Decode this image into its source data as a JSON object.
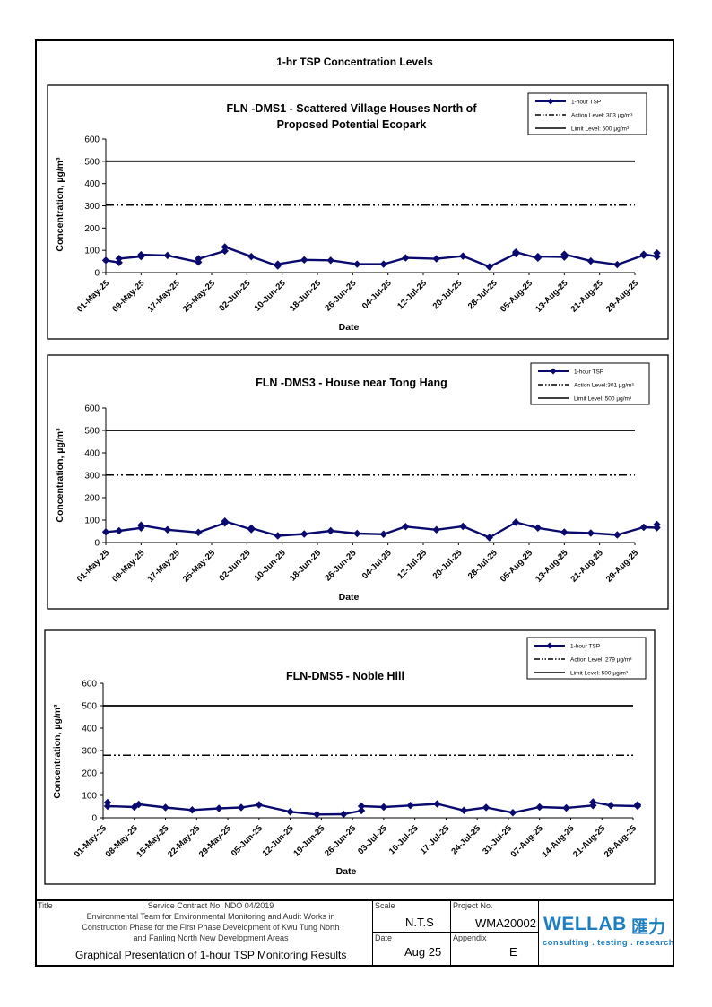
{
  "page": {
    "title": "1-hr TSP Concentration Levels"
  },
  "legend": {
    "tsp": "1-hour TSP"
  },
  "chart_data": [
    {
      "type": "line",
      "title_line1": "FLN -DMS1 - Scattered Village Houses North of",
      "title_line2": "Proposed Potential Ecopark",
      "xlabel": "Date",
      "ylabel": "Concentration, µg/m³",
      "ylim": [
        0,
        600
      ],
      "yticks": [
        "0",
        "100",
        "200",
        "300",
        "400",
        "500",
        "600"
      ],
      "x_range": [
        "2025-05-01",
        "2025-08-29"
      ],
      "x_ticks": [
        "01-May-25",
        "09-May-25",
        "17-May-25",
        "25-May-25",
        "02-Jun-25",
        "10-Jun-25",
        "18-Jun-25",
        "26-Jun-25",
        "04-Jul-25",
        "12-Jul-25",
        "20-Jul-25",
        "28-Jul-25",
        "05-Aug-25",
        "13-Aug-25",
        "21-Aug-25",
        "29-Aug-25"
      ],
      "legend_action": "Action Level: 303 µg/m³",
      "legend_limit": "Limit Level: 500 µg/m³",
      "action_level": 303,
      "limit_level": 500,
      "series": [
        {
          "name": "1-hour TSP",
          "points": [
            [
              "2025-05-01",
              55
            ],
            [
              "2025-05-04",
              45
            ],
            [
              "2025-05-04",
              63
            ],
            [
              "2025-05-09",
              72
            ],
            [
              "2025-05-09",
              80
            ],
            [
              "2025-05-15",
              77
            ],
            [
              "2025-05-22",
              47
            ],
            [
              "2025-05-22",
              62
            ],
            [
              "2025-05-28",
              97
            ],
            [
              "2025-05-28",
              115
            ],
            [
              "2025-06-03",
              72
            ],
            [
              "2025-06-09",
              30
            ],
            [
              "2025-06-09",
              38
            ],
            [
              "2025-06-15",
              57
            ],
            [
              "2025-06-21",
              55
            ],
            [
              "2025-06-27",
              38
            ],
            [
              "2025-07-03",
              38
            ],
            [
              "2025-07-08",
              66
            ],
            [
              "2025-07-15",
              62
            ],
            [
              "2025-07-21",
              74
            ],
            [
              "2025-07-27",
              26
            ],
            [
              "2025-08-02",
              85
            ],
            [
              "2025-08-02",
              92
            ],
            [
              "2025-08-07",
              65
            ],
            [
              "2025-08-07",
              72
            ],
            [
              "2025-08-13",
              70
            ],
            [
              "2025-08-13",
              82
            ],
            [
              "2025-08-19",
              52
            ],
            [
              "2025-08-25",
              36
            ],
            [
              "2025-08-31",
              78
            ],
            [
              "2025-08-31",
              82
            ],
            [
              "2025-09-03",
              72
            ],
            [
              "2025-09-03",
              88
            ]
          ]
        }
      ]
    },
    {
      "type": "line",
      "title_line1": "FLN -DMS3 - House near Tong Hang",
      "title_line2": "",
      "xlabel": "Date",
      "ylabel": "Concentration, µg/m³",
      "ylim": [
        0,
        600
      ],
      "yticks": [
        "0",
        "100",
        "200",
        "300",
        "400",
        "500",
        "600"
      ],
      "x_range": [
        "2025-05-01",
        "2025-08-29"
      ],
      "x_ticks": [
        "01-May-25",
        "09-May-25",
        "17-May-25",
        "25-May-25",
        "02-Jun-25",
        "10-Jun-25",
        "18-Jun-25",
        "26-Jun-25",
        "04-Jul-25",
        "12-Jul-25",
        "20-Jul-25",
        "28-Jul-25",
        "05-Aug-25",
        "13-Aug-25",
        "21-Aug-25",
        "29-Aug-25"
      ],
      "legend_action": "Action Level:301 µg/m³",
      "legend_limit": "Limit Level: 500 µg/m³",
      "action_level": 301,
      "limit_level": 500,
      "series": [
        {
          "name": "1-hour TSP",
          "points": [
            [
              "2025-05-01",
              47
            ],
            [
              "2025-05-04",
              52
            ],
            [
              "2025-05-09",
              65
            ],
            [
              "2025-05-09",
              77
            ],
            [
              "2025-05-15",
              57
            ],
            [
              "2025-05-22",
              45
            ],
            [
              "2025-05-28",
              87
            ],
            [
              "2025-05-28",
              95
            ],
            [
              "2025-06-03",
              58
            ],
            [
              "2025-06-03",
              64
            ],
            [
              "2025-06-09",
              30
            ],
            [
              "2025-06-15",
              38
            ],
            [
              "2025-06-21",
              52
            ],
            [
              "2025-06-27",
              40
            ],
            [
              "2025-07-03",
              37
            ],
            [
              "2025-07-08",
              71
            ],
            [
              "2025-07-15",
              57
            ],
            [
              "2025-07-21",
              72
            ],
            [
              "2025-07-27",
              22
            ],
            [
              "2025-08-02",
              90
            ],
            [
              "2025-08-07",
              65
            ],
            [
              "2025-08-13",
              46
            ],
            [
              "2025-08-19",
              42
            ],
            [
              "2025-08-25",
              34
            ],
            [
              "2025-08-31",
              68
            ],
            [
              "2025-09-03",
              66
            ],
            [
              "2025-09-03",
              80
            ]
          ]
        }
      ]
    },
    {
      "type": "line",
      "title_line1": "FLN-DMS5 - Noble Hill",
      "title_line2": "",
      "xlabel": "Date",
      "ylabel": "Concentration, µg/m³",
      "ylim": [
        0,
        600
      ],
      "yticks": [
        "0",
        "100",
        "200",
        "300",
        "400",
        "500",
        "600"
      ],
      "x_range": [
        "2025-05-01",
        "2025-08-28"
      ],
      "x_ticks": [
        "01-May-25",
        "08-May-25",
        "15-May-25",
        "22-May-25",
        "29-May-25",
        "05-Jun-25",
        "12-Jun-25",
        "19-Jun-25",
        "26-Jun-25",
        "03-Jul-25",
        "10-Jul-25",
        "17-Jul-25",
        "24-Jul-25",
        "31-Jul-25",
        "07-Aug-25",
        "14-Aug-25",
        "21-Aug-25",
        "28-Aug-25"
      ],
      "legend_action": "Action Level: 279 µg/m³",
      "legend_limit": "Limit Level: 500 µg/m³",
      "action_level": 279,
      "limit_level": 500,
      "series": [
        {
          "name": "1-hour TSP",
          "points": [
            [
              "2025-05-02",
              68
            ],
            [
              "2025-05-02",
              52
            ],
            [
              "2025-05-08",
              48
            ],
            [
              "2025-05-09",
              60
            ],
            [
              "2025-05-15",
              46
            ],
            [
              "2025-05-21",
              35
            ],
            [
              "2025-05-27",
              42
            ],
            [
              "2025-06-01",
              46
            ],
            [
              "2025-06-05",
              58
            ],
            [
              "2025-06-12",
              27
            ],
            [
              "2025-06-18",
              15
            ],
            [
              "2025-06-24",
              16
            ],
            [
              "2025-06-28",
              32
            ],
            [
              "2025-06-28",
              52
            ],
            [
              "2025-07-03",
              48
            ],
            [
              "2025-07-09",
              55
            ],
            [
              "2025-07-15",
              62
            ],
            [
              "2025-07-21",
              33
            ],
            [
              "2025-07-26",
              46
            ],
            [
              "2025-08-01",
              23
            ],
            [
              "2025-08-07",
              48
            ],
            [
              "2025-08-13",
              44
            ],
            [
              "2025-08-19",
              55
            ],
            [
              "2025-08-19",
              70
            ],
            [
              "2025-08-23",
              55
            ],
            [
              "2025-08-29",
              52
            ],
            [
              "2025-08-29",
              58
            ]
          ]
        }
      ]
    }
  ],
  "title_block": {
    "title_label": "Title",
    "title_lines": [
      "Service Contract No. NDO 04/2019",
      "Environmental Team for Environmental Monitoring and Audit Works in",
      "Construction Phase for the First Phase Development of Kwu Tung North",
      "and Fanling North New Development Areas"
    ],
    "subject": "Graphical Presentation of 1-hour TSP Monitoring Results",
    "scale_label": "Scale",
    "scale_value": "N.T.S",
    "project_label": "Project No.",
    "project_value": "WMA20002",
    "date_label": "Date",
    "date_value": "Aug 25",
    "appendix_label": "Appendix",
    "appendix_value": "E",
    "logo_word": "WELLAB",
    "logo_cn": "匯力",
    "logo_tagline": "consulting . testing . research",
    "logo_color": "#1e7fc0"
  },
  "colors": {
    "series": "#0a0a6e",
    "lines": "#000000"
  }
}
